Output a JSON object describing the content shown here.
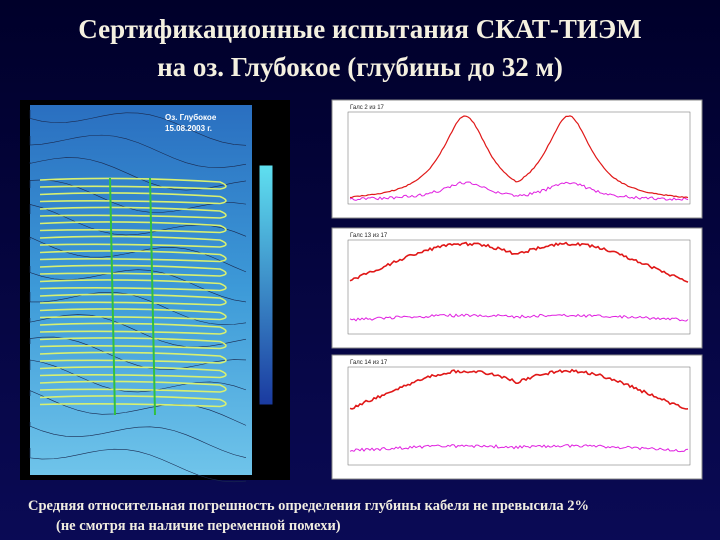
{
  "slide": {
    "title_lines": [
      "Сертификационные испытания СКАТ-ТИЭМ",
      "на оз. Глубокое (глубины до 32 м)"
    ],
    "map": {
      "label": "Оз. Глубокое",
      "date": "15.08.2003 г."
    },
    "plots": [
      {
        "label": "Галс 2 из 17"
      },
      {
        "label": "Галс 13 из 17"
      },
      {
        "label": "Галс 14 из 17"
      }
    ],
    "footer_lines": [
      "Средняя относительная погрешность определения глубины кабеля не превысила 2%",
      "(не смотря на наличие переменной помехи)"
    ]
  }
}
